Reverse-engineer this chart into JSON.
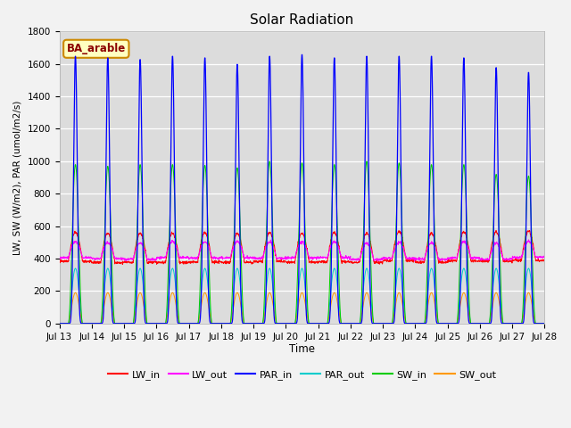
{
  "title": "Solar Radiation",
  "ylabel": "LW, SW (W/m2), PAR (umol/m2/s)",
  "xlabel": "Time",
  "annotation": "BA_arable",
  "ylim": [
    0,
    1800
  ],
  "fig_bg_color": "#f2f2f2",
  "plot_bg_color": "#dcdcdc",
  "grid_color": "#ffffff",
  "colors": {
    "LW_in": "#ff0000",
    "LW_out": "#ff00ff",
    "PAR_in": "#0000ff",
    "PAR_out": "#00cccc",
    "SW_in": "#00cc00",
    "SW_out": "#ff9900"
  },
  "x_tick_labels": [
    "Jul 13",
    "Jul 14",
    "Jul 15",
    "Jul 16",
    "Jul 17",
    "Jul 18",
    "Jul 19",
    "Jul 20",
    "Jul 21",
    "Jul 22",
    "Jul 23",
    "Jul 24",
    "Jul 25",
    "Jul 26",
    "Jul 27",
    "Jul 28"
  ],
  "n_days": 15,
  "pts_per_day": 144,
  "PAR_peaks": [
    1650,
    1640,
    1630,
    1650,
    1640,
    1600,
    1650,
    1660,
    1640,
    1650,
    1650,
    1650,
    1640,
    1580,
    1550
  ],
  "SW_peaks": [
    980,
    970,
    980,
    980,
    975,
    960,
    1000,
    990,
    980,
    1000,
    990,
    980,
    980,
    920,
    910
  ],
  "PAR_out_peak": 340,
  "SW_out_peak": 190,
  "LW_in_night": 380,
  "LW_in_day_add": 180,
  "LW_out_night": 400,
  "LW_out_day_add": 100
}
